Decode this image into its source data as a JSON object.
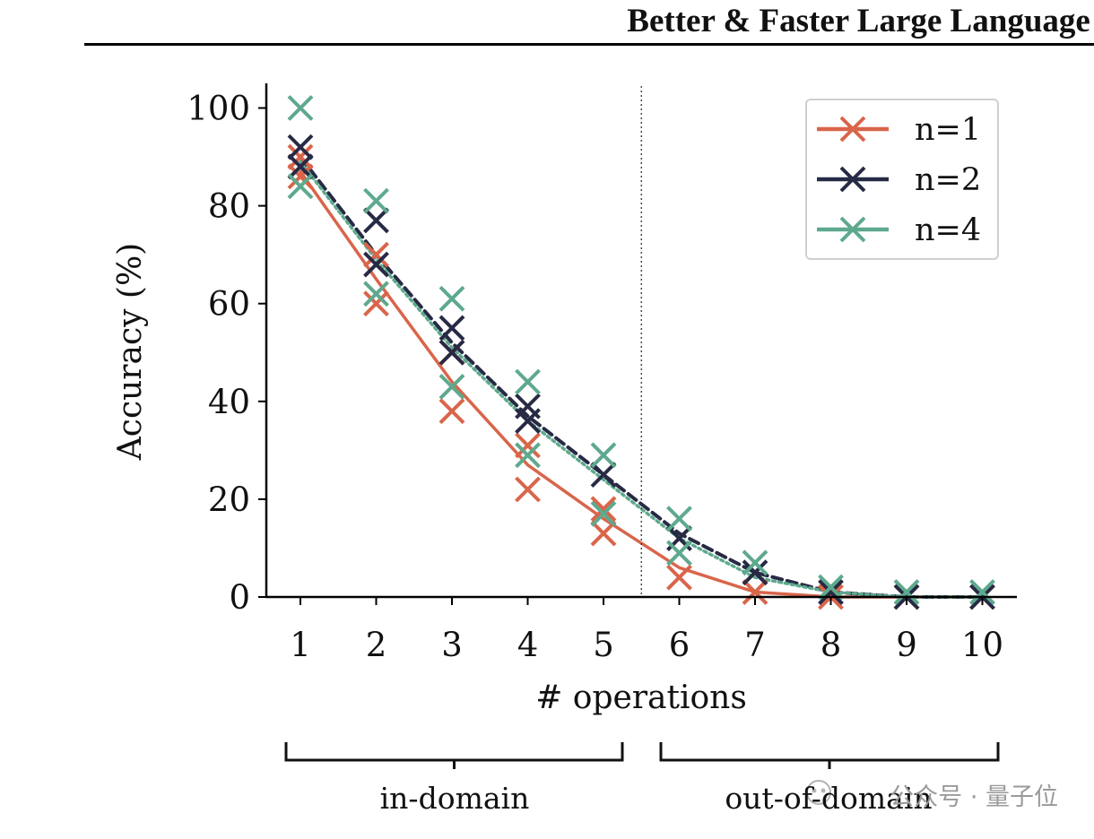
{
  "header": {
    "title": "Better & Faster Large Language M"
  },
  "chart_data": {
    "type": "scatter",
    "title": "",
    "xlabel": "# operations",
    "ylabel": "Accuracy (%)",
    "xlim": [
      0.55,
      10.45
    ],
    "ylim": [
      0,
      105
    ],
    "xticks": [
      "1",
      "2",
      "3",
      "4",
      "5",
      "6",
      "7",
      "8",
      "9",
      "10"
    ],
    "yticks": [
      "0",
      "20",
      "40",
      "60",
      "80",
      "100"
    ],
    "split_at": 5.5,
    "series": [
      {
        "name": "n=1",
        "color": "#d9654a",
        "trend": [
          [
            1,
            87
          ],
          [
            2,
            65
          ],
          [
            3,
            44
          ],
          [
            4,
            27
          ],
          [
            5,
            16
          ],
          [
            6,
            6
          ],
          [
            7,
            1
          ],
          [
            8,
            0
          ],
          [
            9,
            0
          ],
          [
            10,
            0
          ]
        ],
        "points": [
          [
            1,
            90
          ],
          [
            1,
            86
          ],
          [
            2,
            70
          ],
          [
            2,
            60
          ],
          [
            3,
            50
          ],
          [
            3,
            38
          ],
          [
            4,
            31
          ],
          [
            4,
            22
          ],
          [
            5,
            18
          ],
          [
            5,
            13
          ],
          [
            6,
            4
          ],
          [
            7,
            1
          ],
          [
            8,
            0
          ],
          [
            9,
            0
          ],
          [
            10,
            0
          ]
        ]
      },
      {
        "name": "n=2",
        "color": "#272a44",
        "trend": [
          [
            1,
            90
          ],
          [
            2,
            70
          ],
          [
            3,
            52
          ],
          [
            4,
            37
          ],
          [
            5,
            25
          ],
          [
            6,
            13
          ],
          [
            7,
            5
          ],
          [
            8,
            1
          ],
          [
            9,
            0
          ],
          [
            10,
            0
          ]
        ],
        "points": [
          [
            1,
            92
          ],
          [
            1,
            88
          ],
          [
            2,
            77
          ],
          [
            2,
            68
          ],
          [
            3,
            55
          ],
          [
            3,
            50
          ],
          [
            4,
            39
          ],
          [
            4,
            36
          ],
          [
            5,
            25
          ],
          [
            6,
            12
          ],
          [
            7,
            5
          ],
          [
            8,
            1
          ],
          [
            9,
            0
          ],
          [
            10,
            0
          ]
        ]
      },
      {
        "name": "n=4",
        "color": "#5ea98e",
        "trend": [
          [
            1,
            89
          ],
          [
            2,
            69
          ],
          [
            3,
            51
          ],
          [
            4,
            36
          ],
          [
            5,
            24
          ],
          [
            6,
            12
          ],
          [
            7,
            4
          ],
          [
            8,
            1
          ],
          [
            9,
            0
          ],
          [
            10,
            0
          ]
        ],
        "points": [
          [
            1,
            100
          ],
          [
            1,
            84
          ],
          [
            2,
            81
          ],
          [
            2,
            62
          ],
          [
            3,
            61
          ],
          [
            3,
            43
          ],
          [
            4,
            44
          ],
          [
            4,
            29
          ],
          [
            5,
            29
          ],
          [
            5,
            17
          ],
          [
            6,
            16
          ],
          [
            6,
            9
          ],
          [
            7,
            7
          ],
          [
            8,
            2
          ],
          [
            9,
            1
          ],
          [
            10,
            1
          ]
        ]
      }
    ],
    "annotations": {
      "in_domain": "in-domain",
      "out_of_domain": "out-of-domain"
    }
  },
  "watermark": {
    "text": "公众号 · 量子位"
  }
}
